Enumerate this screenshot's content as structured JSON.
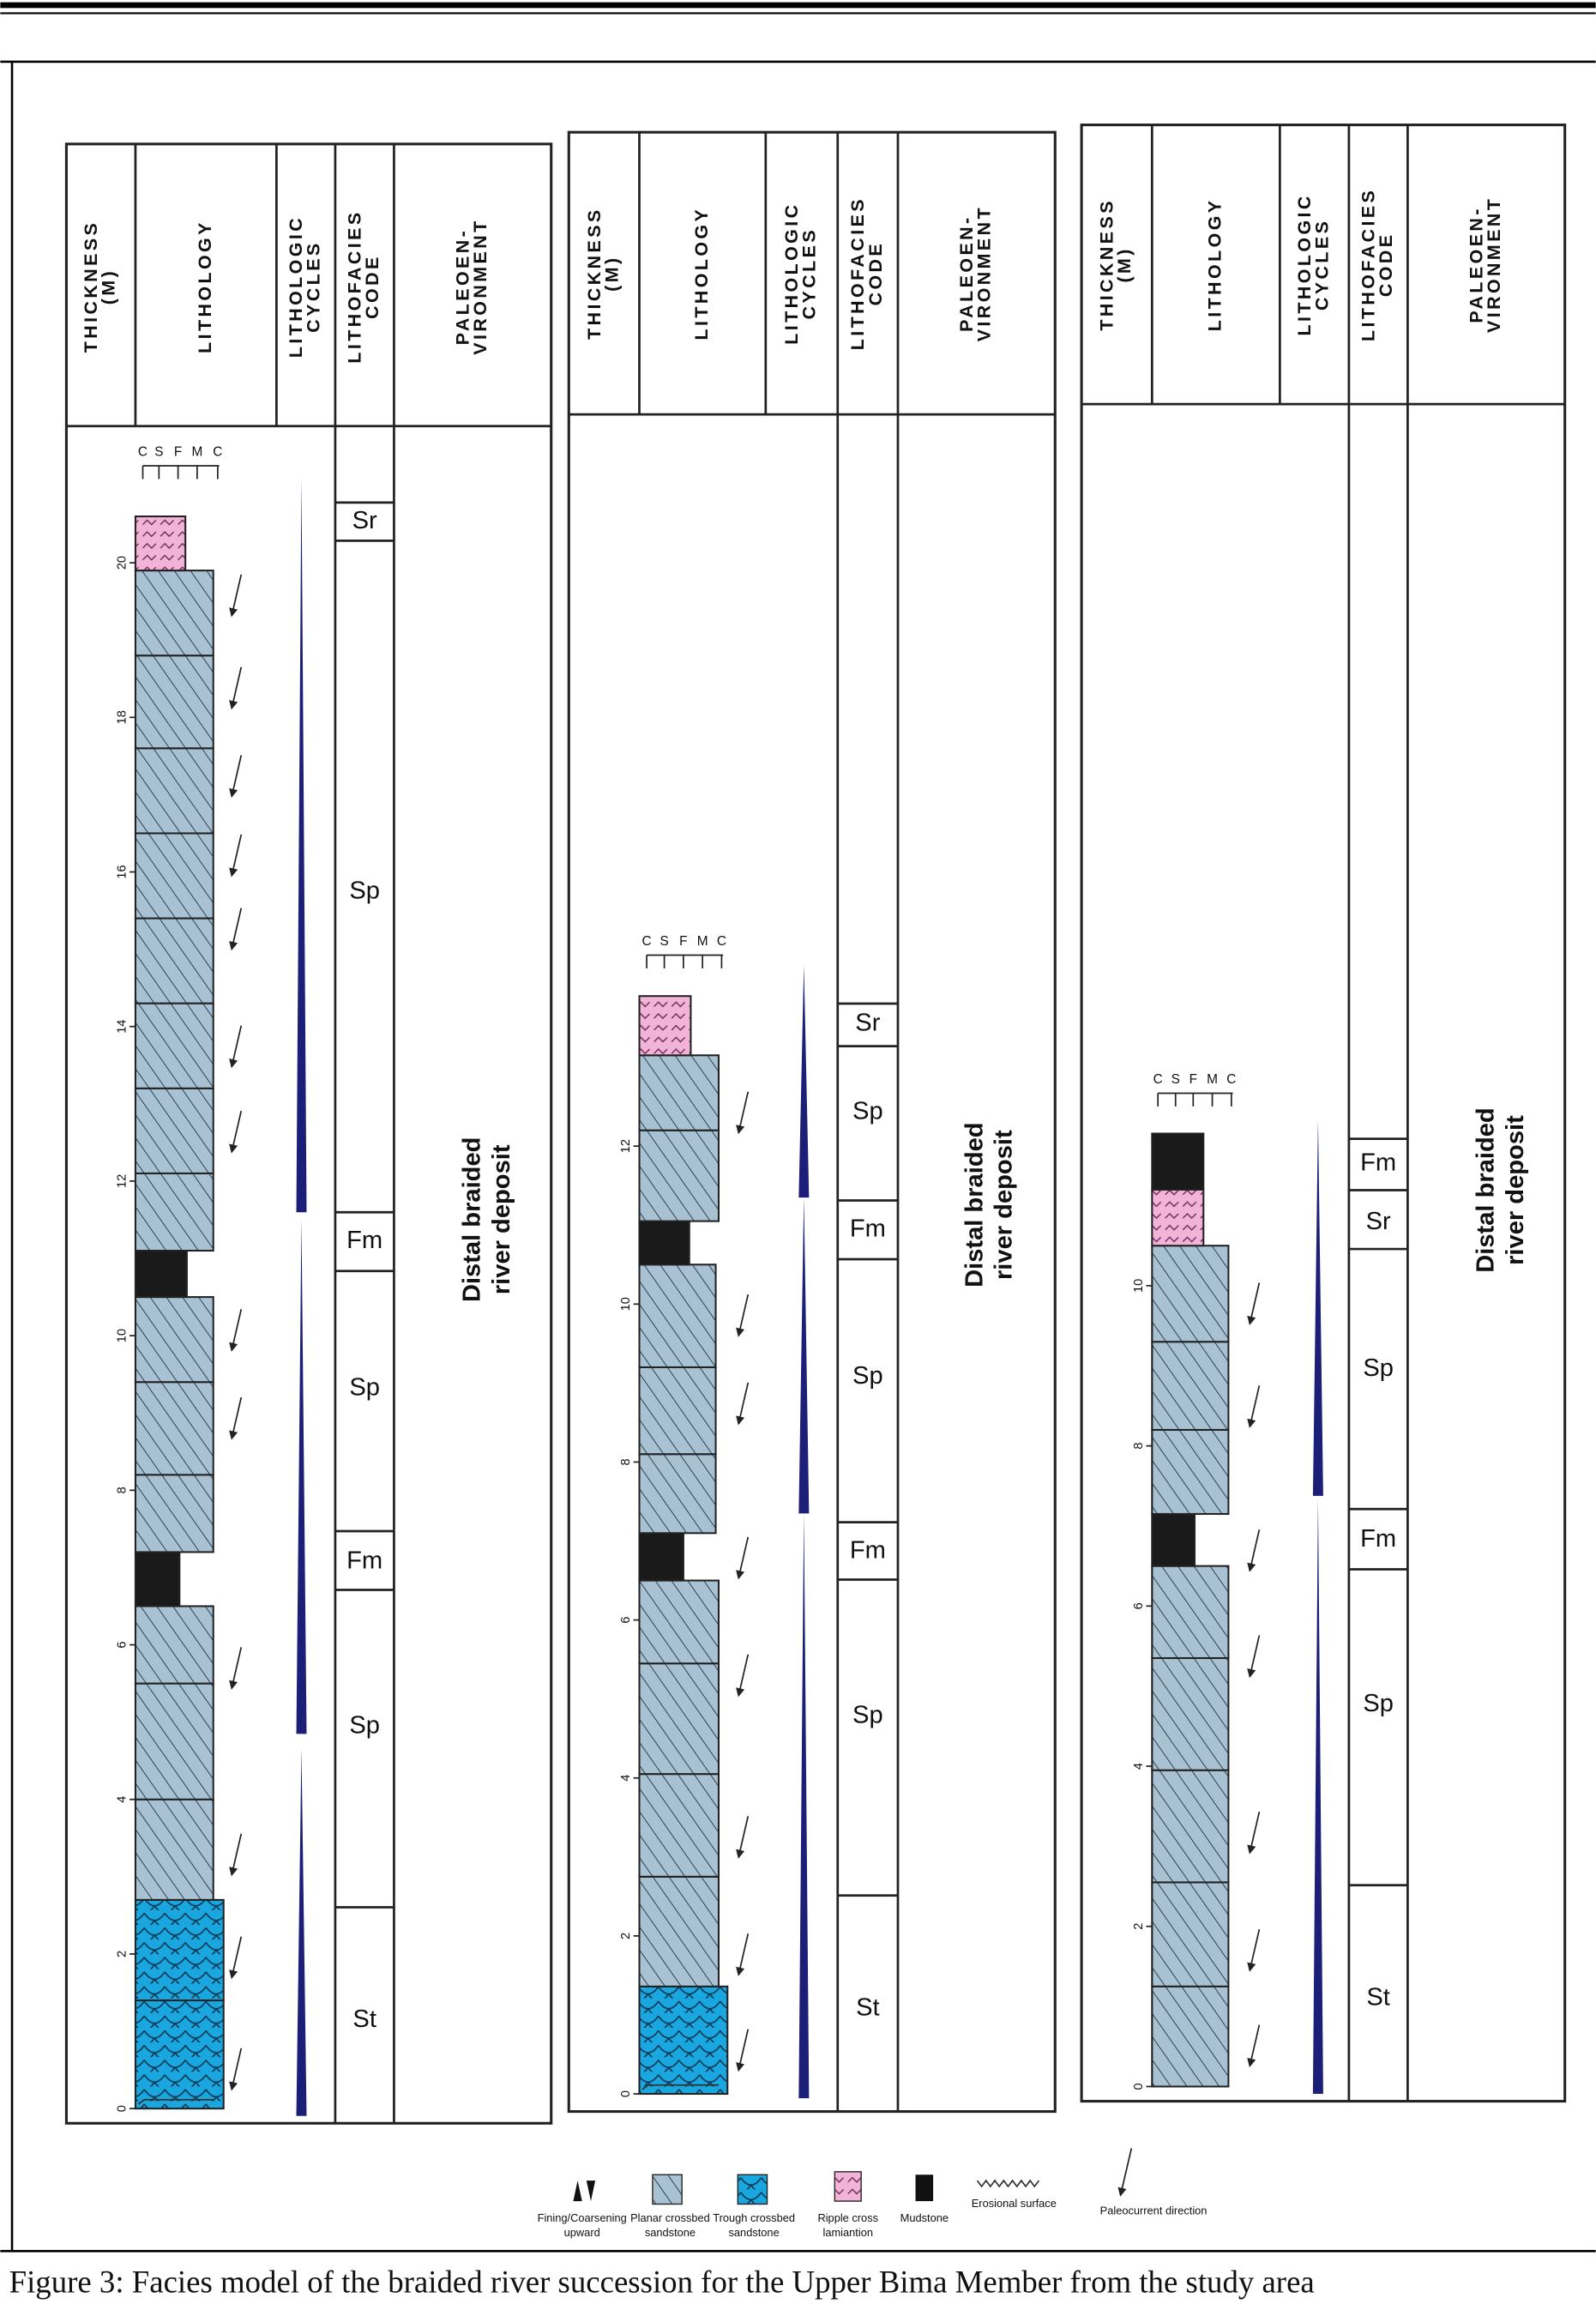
{
  "logs": [
    {
      "headers": [
        [
          "THICKNESS",
          "(M)"
        ],
        [
          "LITHOLOGY"
        ],
        [
          "LITHOLOGIC",
          "CYCLES"
        ],
        [
          "LITHOFACIES",
          "CODE"
        ],
        [
          "PALEOEN-",
          "VIRONMENT"
        ]
      ],
      "grain_size": [
        "C",
        "S",
        "F",
        "M",
        "C"
      ],
      "thickness_ticks": [
        0,
        2,
        4,
        6,
        8,
        10,
        12,
        14,
        16,
        18,
        20
      ],
      "facies_codes": [
        "Sr",
        "Sp",
        "Fm",
        "Sp",
        "Fm",
        "Sp",
        "St"
      ],
      "environment": [
        "Distal braided",
        "river deposit"
      ]
    },
    {
      "headers": [
        [
          "THICKNESS",
          "(M)"
        ],
        [
          "LITHOLOGY"
        ],
        [
          "LITHOLOGIC",
          "CYCLES"
        ],
        [
          "LITHOFACIES",
          "CODE"
        ],
        [
          "PALEOEN-",
          "VIRONMENT"
        ]
      ],
      "grain_size": [
        "C",
        "S",
        "F",
        "M",
        "C"
      ],
      "thickness_ticks": [
        0,
        2,
        4,
        6,
        8,
        10,
        12
      ],
      "facies_codes": [
        "Sr",
        "Sp",
        "Fm",
        "Sp",
        "Fm",
        "Sp",
        "St"
      ],
      "environment": [
        "Distal braided",
        "river deposit"
      ]
    },
    {
      "headers": [
        [
          "THICKNESS",
          "(M)"
        ],
        [
          "LITHOLOGY"
        ],
        [
          "LITHOLOGIC",
          "CYCLES"
        ],
        [
          "LITHOFACIES",
          "CODE"
        ],
        [
          "PALEOEN-",
          "VIRONMENT"
        ]
      ],
      "grain_size": [
        "C",
        "S",
        "F",
        "M",
        "C"
      ],
      "thickness_ticks": [
        0,
        2,
        4,
        6,
        8,
        10
      ],
      "facies_codes": [
        "Fm",
        "Sr",
        "Sp",
        "Fm",
        "Sp",
        "St"
      ],
      "environment": [
        "Distal braided",
        "river deposit"
      ]
    }
  ],
  "legend": [
    {
      "label": [
        "Fining/Coarsening",
        "upward"
      ]
    },
    {
      "label": [
        "Planar crossbed",
        "sandstone"
      ]
    },
    {
      "label": [
        "Trough crossbed",
        "sandstone"
      ]
    },
    {
      "label": [
        "Ripple cross",
        "lamiantion"
      ]
    },
    {
      "label": [
        "Mudstone"
      ]
    },
    {
      "label": [
        "Erosional surface"
      ]
    },
    {
      "label": [
        "Paleocurrent direction"
      ]
    }
  ],
  "caption": "Figure 3: Facies model of the braided river succession for the Upper Bima Member from the study area"
}
